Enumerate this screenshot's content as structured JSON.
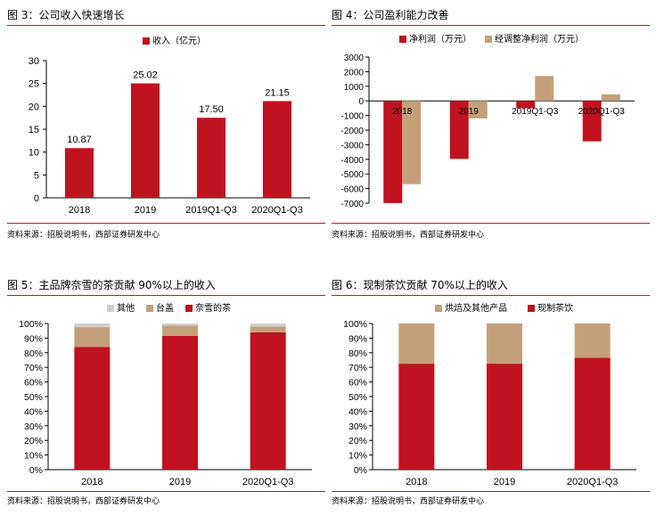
{
  "colors": {
    "red": "#c0121f",
    "tan": "#c3a07a",
    "gray": "#cfcfcf",
    "rule": "#b51d25"
  },
  "source": "资料来源：招股说明书，西部证券研发中心",
  "chart_data": [
    {
      "id": "fig3",
      "type": "bar",
      "title": "图 3：公司收入快速增长",
      "categories": [
        "2018",
        "2019",
        "2019Q1-Q3",
        "2020Q1-Q3"
      ],
      "series": [
        {
          "name": "收入（亿元）",
          "values": [
            10.87,
            25.02,
            17.5,
            21.15
          ],
          "color": "#c0121f",
          "labels": [
            "10.87",
            "25.02",
            "17.50",
            "21.15"
          ]
        }
      ],
      "ylim": [
        0,
        30
      ],
      "yticks": [
        0,
        5,
        10,
        15,
        20,
        25,
        30
      ],
      "legend": "top-center",
      "grid": false
    },
    {
      "id": "fig4",
      "type": "bar",
      "title": "图 4：公司盈利能力改善",
      "categories": [
        "2018",
        "2019",
        "2019Q1-Q3",
        "2020Q1-Q3"
      ],
      "series": [
        {
          "name": "净利润（万元）",
          "values": [
            -6990,
            -3970,
            -500,
            -2770
          ],
          "color": "#c0121f"
        },
        {
          "name": "经调整净利润（万元）",
          "values": [
            -5700,
            -1200,
            1700,
            450
          ],
          "color": "#c3a07a"
        }
      ],
      "ylim": [
        -7000,
        3000
      ],
      "yticks": [
        3000,
        2000,
        1000,
        0,
        -1000,
        -2000,
        -3000,
        -4000,
        -5000,
        -6000,
        -7000
      ],
      "legend": "top-center",
      "grid": false
    },
    {
      "id": "fig5",
      "type": "bar",
      "stacked": true,
      "title": "图 5：主品牌奈雪的茶贡献 90%以上的收入",
      "categories": [
        "2018",
        "2019",
        "2020Q1-Q3"
      ],
      "series": [
        {
          "name": "奈雪的茶",
          "values": [
            0.84,
            0.915,
            0.94
          ],
          "color": "#c0121f"
        },
        {
          "name": "台盖",
          "values": [
            0.135,
            0.07,
            0.04
          ],
          "color": "#c3a07a"
        },
        {
          "name": "其他",
          "values": [
            0.025,
            0.015,
            0.02
          ],
          "color": "#cfcfcf"
        }
      ],
      "legend_order": [
        "其他",
        "台盖",
        "奈雪的茶"
      ],
      "ylim": [
        0,
        1
      ],
      "yticks": [
        "0%",
        "10%",
        "20%",
        "30%",
        "40%",
        "50%",
        "60%",
        "70%",
        "80%",
        "90%",
        "100%"
      ],
      "legend": "top-left",
      "grid": false
    },
    {
      "id": "fig6",
      "type": "bar",
      "stacked": true,
      "title": "图 6：现制茶饮贡献 70%以上的收入",
      "categories": [
        "2018",
        "2019",
        "2020Q1-Q3"
      ],
      "series": [
        {
          "name": "现制茶饮",
          "values": [
            0.725,
            0.725,
            0.765
          ],
          "color": "#c0121f"
        },
        {
          "name": "烘焙及其他产品",
          "values": [
            0.275,
            0.275,
            0.235
          ],
          "color": "#c3a07a"
        }
      ],
      "legend_order": [
        "烘焙及其他产品",
        "现制茶饮"
      ],
      "ylim": [
        0,
        1
      ],
      "yticks": [
        "0%",
        "10%",
        "20%",
        "30%",
        "40%",
        "50%",
        "60%",
        "70%",
        "80%",
        "90%",
        "100%"
      ],
      "legend": "top-center",
      "grid": false
    }
  ]
}
